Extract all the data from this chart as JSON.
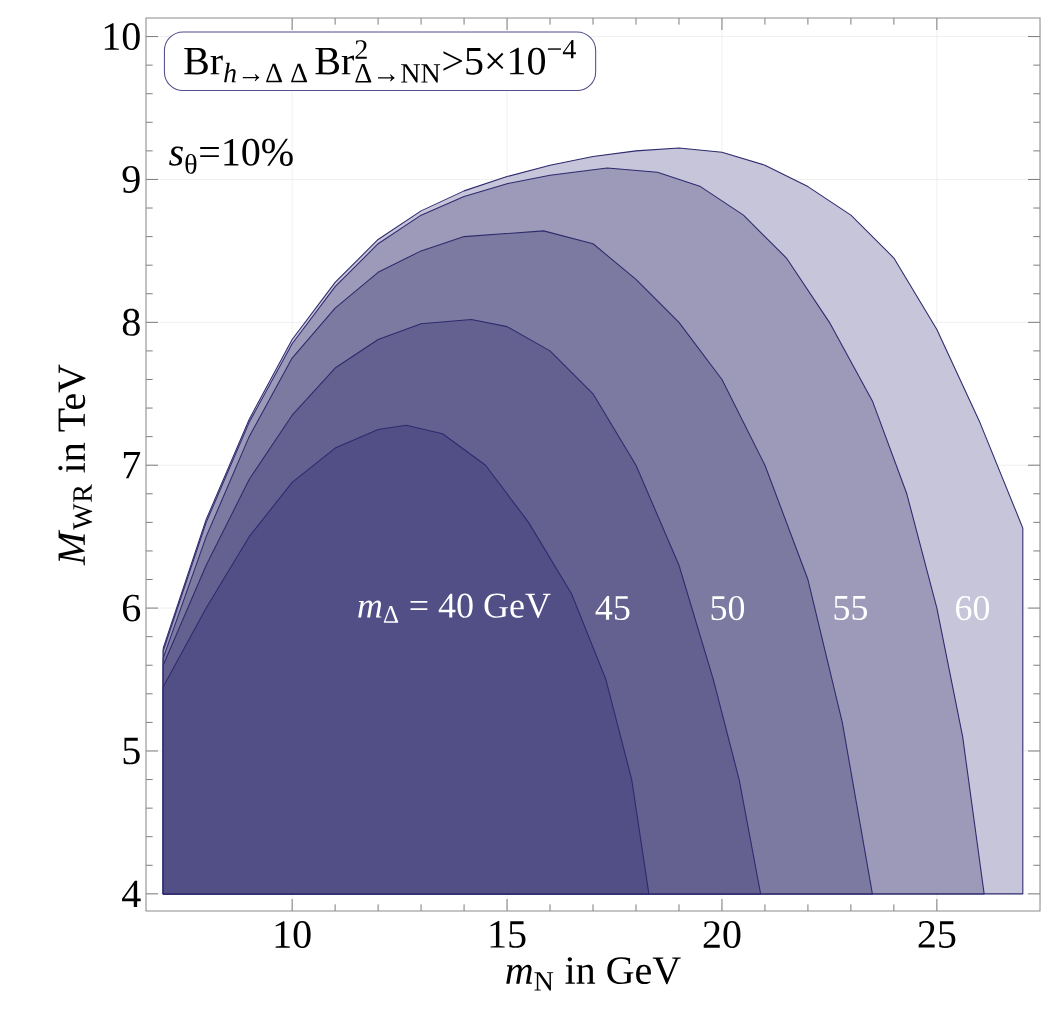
{
  "chart_data": {
    "type": "area",
    "xlabel": "*m*$_{N}$ in GeV",
    "ylabel": "*M*$_{W}$$_{R}$ in TeV",
    "annotations": [
      "\\text{Br}_{\\textit{h}\\text{→Δ Δ}}\\,\\text{Br}^{\\text{2}}_{\\text{Δ→NN}}\\text{>5×10}^{\\text{−4}}",
      "*s*$_{θ}$=10%"
    ],
    "xlim": [
      6.6,
      27.4
    ],
    "ylim": [
      3.88,
      10.13
    ],
    "xticks": [
      10,
      15,
      20,
      25
    ],
    "yticks": [
      4,
      5,
      6,
      7,
      8,
      9,
      10
    ],
    "grid": true,
    "series": [
      {
        "name": "*m*$_{Δ}$ = 40 GeV",
        "color": "#524f86",
        "x": [
          7,
          7,
          8,
          9,
          10,
          11,
          12,
          12.65,
          13.5,
          14.5,
          15.5,
          16.5,
          17.3,
          17.9,
          18.3
        ],
        "values": [
          4,
          5.45,
          6.0,
          6.5,
          6.88,
          7.12,
          7.25,
          7.28,
          7.22,
          7.0,
          6.6,
          6.1,
          5.5,
          4.8,
          4.0
        ]
      },
      {
        "name": "45",
        "color": "#646190",
        "x": [
          7,
          7,
          8,
          9,
          10,
          11,
          12,
          13,
          14.17,
          15,
          16,
          17,
          18,
          19,
          19.8,
          20.4,
          20.9
        ],
        "values": [
          4,
          5.6,
          6.3,
          6.9,
          7.35,
          7.68,
          7.88,
          7.99,
          8.02,
          7.97,
          7.8,
          7.5,
          7.0,
          6.3,
          5.5,
          4.8,
          4.0
        ]
      },
      {
        "name": "50",
        "color": "#7c7aa0",
        "x": [
          7,
          7,
          8,
          9,
          10,
          11,
          12,
          13,
          14,
          15.85,
          17,
          18,
          19,
          20,
          21,
          22,
          22.8,
          23.5
        ],
        "values": [
          4,
          5.65,
          6.5,
          7.2,
          7.75,
          8.1,
          8.35,
          8.5,
          8.6,
          8.64,
          8.55,
          8.3,
          8.0,
          7.6,
          7.0,
          6.2,
          5.2,
          4.0
        ]
      },
      {
        "name": "55",
        "color": "#9c9ab8",
        "x": [
          7,
          7,
          8,
          9,
          10,
          11,
          12,
          13,
          14,
          15,
          16,
          17.33,
          18.5,
          19.5,
          20.5,
          21.5,
          22.5,
          23.5,
          24.3,
          25,
          25.6,
          26.1
        ],
        "values": [
          4,
          5.7,
          6.6,
          7.3,
          7.85,
          8.25,
          8.55,
          8.75,
          8.88,
          8.97,
          9.03,
          9.08,
          9.05,
          8.95,
          8.75,
          8.45,
          8.0,
          7.45,
          6.8,
          6.0,
          5.1,
          4.0
        ]
      },
      {
        "name": "60",
        "color": "#c6c5da",
        "x": [
          7,
          7,
          8,
          9,
          10,
          11,
          12,
          13,
          14,
          15,
          16,
          17,
          18,
          19,
          20,
          21,
          22,
          23,
          24,
          25,
          26,
          27,
          27
        ],
        "values": [
          4,
          5.72,
          6.62,
          7.32,
          7.88,
          8.28,
          8.58,
          8.78,
          8.92,
          9.02,
          9.1,
          9.16,
          9.2,
          9.22,
          9.19,
          9.1,
          8.95,
          8.75,
          8.45,
          7.95,
          7.3,
          6.56,
          4
        ]
      }
    ]
  }
}
